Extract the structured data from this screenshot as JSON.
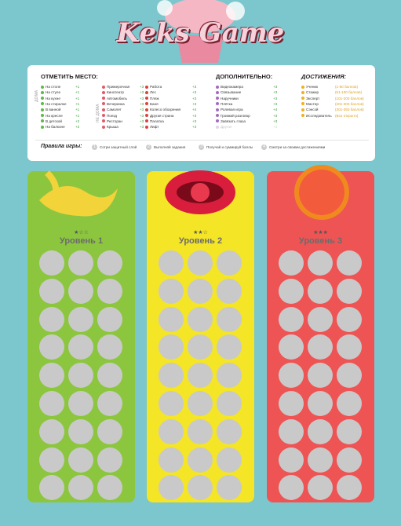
{
  "header": {
    "title": "Keks Game"
  },
  "places": {
    "title": "ОТМЕТИТЬ МЕСТО:",
    "groups": [
      {
        "label": "ДОМА",
        "items": [
          {
            "name": "На столе",
            "points": "+1"
          },
          {
            "name": "На стуле",
            "points": "+1"
          },
          {
            "name": "На кухне",
            "points": "+1"
          },
          {
            "name": "На стиралке",
            "points": "+1"
          },
          {
            "name": "В ванной",
            "points": "+1"
          },
          {
            "name": "На кресле",
            "points": "+1"
          },
          {
            "name": "В детской",
            "points": "+2"
          },
          {
            "name": "На балконе",
            "points": "+2"
          }
        ]
      },
      {
        "label": "НЕ ДОМА",
        "items": [
          {
            "name": "Примерочная",
            "points": "+3"
          },
          {
            "name": "Кинотеатр",
            "points": "+3"
          },
          {
            "name": "Автомобиль",
            "points": "+3"
          },
          {
            "name": "Вечеринка",
            "points": "+3"
          },
          {
            "name": "Самолет",
            "points": "+3"
          },
          {
            "name": "Поезд",
            "points": "+3"
          },
          {
            "name": "Ресторан",
            "points": "+3"
          },
          {
            "name": "Крыша",
            "points": "+3"
          }
        ]
      },
      {
        "items": [
          {
            "name": "Работа",
            "points": "+3"
          },
          {
            "name": "Лес",
            "points": "+3"
          },
          {
            "name": "Пляж",
            "points": "+3"
          },
          {
            "name": "Баня",
            "points": "+3"
          },
          {
            "name": "Колесо обозрения",
            "points": "+4"
          },
          {
            "name": "Другая страна",
            "points": "+3"
          },
          {
            "name": "Палатка",
            "points": "+3"
          },
          {
            "name": "Лифт",
            "points": "+4"
          }
        ]
      }
    ]
  },
  "extra": {
    "title": "ДОПОЛНИТЕЛЬНО:",
    "items": [
      {
        "name": "Видеокамера",
        "points": "+3"
      },
      {
        "name": "Связывание",
        "points": "+3"
      },
      {
        "name": "Наручники",
        "points": "+3"
      },
      {
        "name": "Плётка",
        "points": "+3"
      },
      {
        "name": "Ролевая игра",
        "points": "+4"
      },
      {
        "name": "Громкий разговор",
        "points": "+3"
      },
      {
        "name": "Завязать глаза",
        "points": "+3"
      },
      {
        "name": "Другое",
        "points": "+3"
      }
    ]
  },
  "achievements": {
    "title": "ДОСТИЖЕНИЯ:",
    "items": [
      {
        "name": "Ученик",
        "range": "(1-50 баллов)"
      },
      {
        "name": "Стажер",
        "range": "(51-100 баллов)"
      },
      {
        "name": "Эксперт",
        "range": "(101-200 баллов)"
      },
      {
        "name": "Мастер",
        "range": "(201-300 баллов)"
      },
      {
        "name": "Сэнсэй",
        "range": "(301-350 баллов)"
      },
      {
        "name": "Исследователь",
        "range": "(Все открыто)"
      }
    ]
  },
  "rules": {
    "title": "Правила игры:",
    "steps": [
      {
        "number": "1",
        "text": "Сотри защитный слой"
      },
      {
        "number": "2",
        "text": "Выполняй задания"
      },
      {
        "number": "3",
        "text": "Получай и суммируй баллы"
      },
      {
        "number": "4",
        "text": "Смотри за своими достижениями"
      }
    ]
  },
  "levels": [
    {
      "stars": "★☆☆",
      "label": "Уровень 1"
    },
    {
      "stars": "★★☆",
      "label": "Уровень 2"
    },
    {
      "stars": "★★★",
      "label": "Уровень 3"
    }
  ]
}
